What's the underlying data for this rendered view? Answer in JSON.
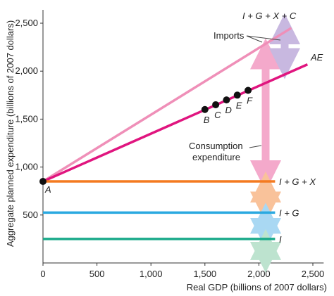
{
  "chart_data": {
    "type": "line",
    "xlabel": "Real GDP (billions of 2007 dollars)",
    "ylabel": "Aggregate planned expenditure (billions of 2007 dollars)",
    "xlim": [
      0,
      2600
    ],
    "ylim": [
      0,
      2600
    ],
    "x_ticks": [
      0,
      500,
      1000,
      1500,
      2000,
      2500
    ],
    "x_tick_labels": [
      "0",
      "500",
      "1,000",
      "1,500",
      "2,000",
      "2,500"
    ],
    "y_ticks": [
      500,
      1000,
      1500,
      2000,
      2500
    ],
    "y_tick_labels": [
      "500",
      "1,000",
      "1,500",
      "2,000",
      "2,500"
    ],
    "grid": false,
    "series": [
      {
        "name": "I + G + X + C",
        "color": "#ef8fb8",
        "points": [
          [
            0,
            850
          ],
          [
            2300,
            2450
          ]
        ]
      },
      {
        "name": "AE",
        "color": "#e0157f",
        "points": [
          [
            0,
            850
          ],
          [
            2450,
            2070
          ]
        ]
      },
      {
        "name": "I + G + X",
        "color": "#f47a20",
        "points": [
          [
            0,
            850
          ],
          [
            2150,
            850
          ]
        ]
      },
      {
        "name": "I + G",
        "color": "#2aa9e0",
        "points": [
          [
            0,
            525
          ],
          [
            2150,
            525
          ]
        ]
      },
      {
        "name": "I",
        "color": "#1aaa8a",
        "points": [
          [
            0,
            250
          ],
          [
            2150,
            250
          ]
        ]
      }
    ],
    "points": [
      {
        "label": "A",
        "x": 0,
        "y": 850
      },
      {
        "label": "B",
        "x": 1500,
        "y": 1600
      },
      {
        "label": "C",
        "x": 1600,
        "y": 1650
      },
      {
        "label": "D",
        "x": 1700,
        "y": 1700
      },
      {
        "label": "E",
        "x": 1800,
        "y": 1750
      },
      {
        "label": "F",
        "x": 1900,
        "y": 1800
      }
    ],
    "annotations": {
      "imports": "Imports",
      "consumption_line1": "Consumption",
      "consumption_line2": "expenditure"
    }
  }
}
